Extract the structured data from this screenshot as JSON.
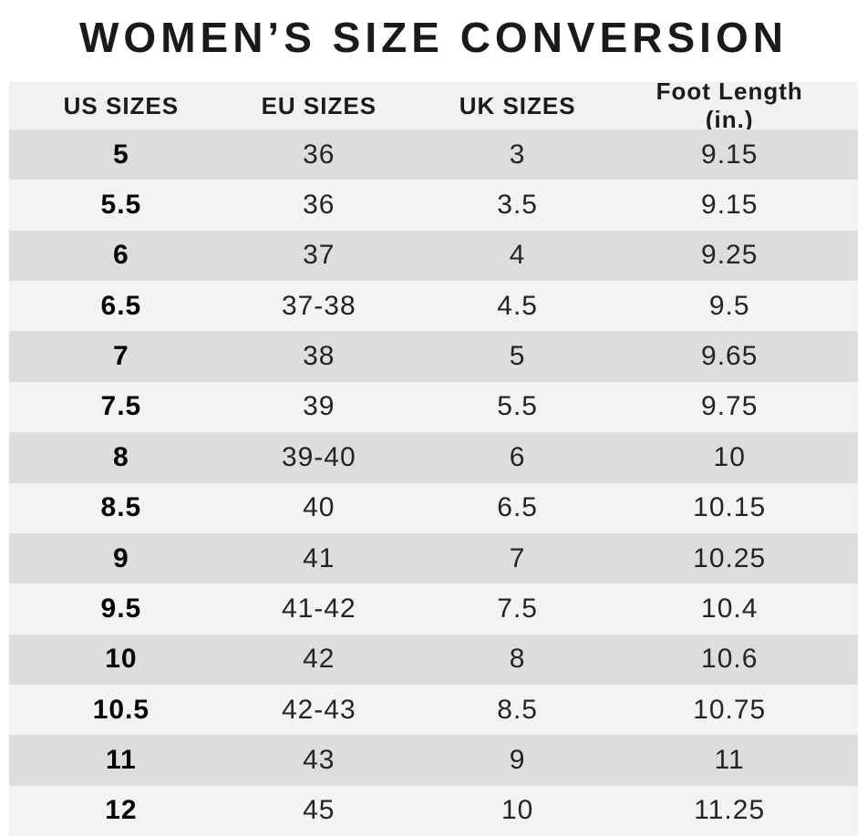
{
  "title": "WOMEN’S SIZE CONVERSION",
  "chart_data": {
    "type": "table",
    "title": "WOMEN’S SIZE CONVERSION",
    "columns": [
      "US SIZES",
      "EU SIZES",
      "UK SIZES",
      "Foot Length (in.)"
    ],
    "rows": [
      [
        "5",
        "36",
        "3",
        "9.15"
      ],
      [
        "5.5",
        "36",
        "3.5",
        "9.15"
      ],
      [
        "6",
        "37",
        "4",
        "9.25"
      ],
      [
        "6.5",
        "37-38",
        "4.5",
        "9.5"
      ],
      [
        "7",
        "38",
        "5",
        "9.65"
      ],
      [
        "7.5",
        "39",
        "5.5",
        "9.75"
      ],
      [
        "8",
        "39-40",
        "6",
        "10"
      ],
      [
        "8.5",
        "40",
        "6.5",
        "10.15"
      ],
      [
        "9",
        "41",
        "7",
        "10.25"
      ],
      [
        "9.5",
        "41-42",
        "7.5",
        "10.4"
      ],
      [
        "10",
        "42",
        "8",
        "10.6"
      ],
      [
        "10.5",
        "42-43",
        "8.5",
        "10.75"
      ],
      [
        "11",
        "43",
        "9",
        "11"
      ],
      [
        "12",
        "45",
        "10",
        "11.25"
      ]
    ],
    "layout": {
      "stripes": "alternating, first data row dark",
      "us_sizes_column_bold": true,
      "header_row_background": "#f1f1f0"
    }
  },
  "colors": {
    "page_background": "#ffffff",
    "header_bg": "#f1f1f0",
    "row_dark": "#dcddde",
    "row_light": "#f2f3f2",
    "title_text": "#1a1a1a",
    "cell_text": "#242424",
    "us_size_text": "#050505"
  }
}
